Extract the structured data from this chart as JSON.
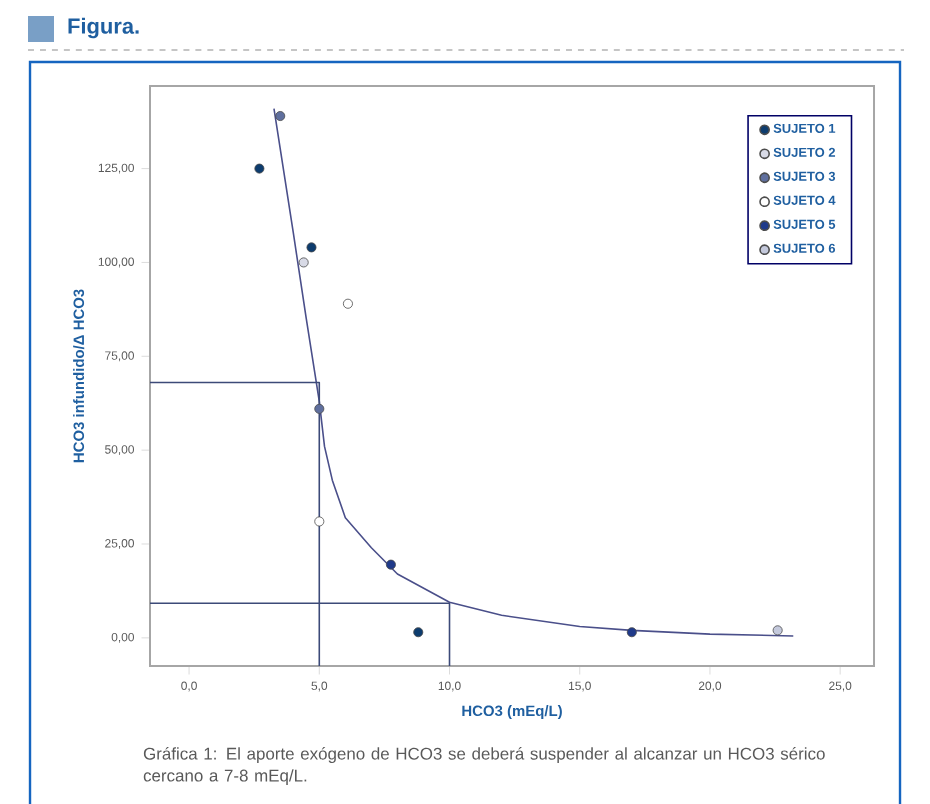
{
  "chart_data": {
    "type": "scatter",
    "title": "Figura.",
    "xlabel": "HCO3 (mEq/L)",
    "ylabel": "HCO3 infundido/Δ HCO3",
    "xlim": [
      -1.5,
      26.3
    ],
    "ylim": [
      -7.5,
      147
    ],
    "xticks": [
      {
        "value": 0,
        "label": "0,0"
      },
      {
        "value": 5,
        "label": "5,0"
      },
      {
        "value": 10,
        "label": "10,0"
      },
      {
        "value": 15,
        "label": "15,0"
      },
      {
        "value": 20,
        "label": "20,0"
      },
      {
        "value": 25,
        "label": "25,0"
      }
    ],
    "yticks": [
      {
        "value": 0,
        "label": "0,00"
      },
      {
        "value": 25,
        "label": "25,00"
      },
      {
        "value": 50,
        "label": "50,00"
      },
      {
        "value": 75,
        "label": "75,00"
      },
      {
        "value": 100,
        "label": "100,00"
      },
      {
        "value": 125,
        "label": "125,00"
      }
    ],
    "marker": "circle",
    "legend": "top right",
    "series": [
      {
        "name": "SUJETO 1",
        "type": "scatter",
        "color": "#0d3c6e",
        "x": [
          2.7,
          4.7,
          8.8
        ],
        "values": [
          125,
          104,
          1.5
        ]
      },
      {
        "name": "SUJETO 2",
        "type": "scatter",
        "color": "#d8dae6",
        "x": [
          4.4
        ],
        "values": [
          100
        ]
      },
      {
        "name": "SUJETO 3",
        "type": "scatter",
        "color": "#5f6f9e",
        "x": [
          3.5,
          5.0
        ],
        "values": [
          139,
          61
        ]
      },
      {
        "name": "SUJETO 4",
        "type": "scatter",
        "color": "#ffffff",
        "x": [
          6.1,
          5.0
        ],
        "values": [
          89,
          31
        ]
      },
      {
        "name": "SUJETO 5",
        "type": "scatter",
        "color": "#1f3a8a",
        "x": [
          7.75,
          17.0
        ],
        "values": [
          19.5,
          1.5
        ]
      },
      {
        "name": "SUJETO 6",
        "type": "scatter",
        "color": "#c4c9dc",
        "x": [
          22.6
        ],
        "values": [
          2
        ]
      },
      {
        "type": "line",
        "marker": "none",
        "color": "#4a4f8a",
        "x": [
          3.26,
          4.0,
          4.5,
          5.0,
          5.2,
          5.5,
          6,
          7,
          8,
          10,
          12,
          15,
          17,
          20,
          23.2
        ],
        "values": [
          141,
          108,
          85,
          63,
          51,
          42,
          32,
          24,
          17,
          9.5,
          6,
          3,
          2,
          1,
          0.5
        ]
      },
      {
        "type": "line",
        "marker": "none",
        "color": "#3c4a78",
        "x": [
          -1.5,
          5,
          5
        ],
        "values": [
          68,
          68,
          -7.5
        ]
      },
      {
        "type": "line",
        "marker": "none",
        "color": "#3c4a78",
        "x": [
          -1.5,
          10,
          10
        ],
        "values": [
          9.2,
          9.2,
          -7.5
        ]
      }
    ],
    "annotations": [
      "Gráfica 1: El aporte exógeno de HCO3 se deberá suspender al alcanzar un HCO3 sérico cercano a 7-8 mEq/L."
    ]
  }
}
